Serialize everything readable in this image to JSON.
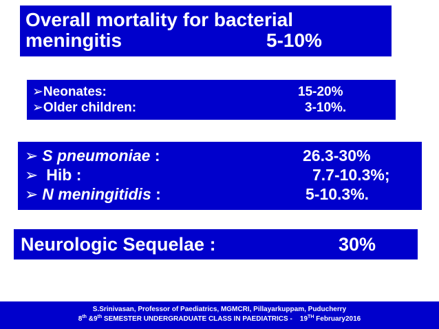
{
  "overall": {
    "line1": "Overall mortality for bacterial",
    "line2_label": "meningitis",
    "line2_value": "5-10%"
  },
  "age_groups": [
    {
      "bullet": "➢",
      "label": "Neonates:",
      "value": "15-20%"
    },
    {
      "bullet": "➢",
      "label": "Older children:",
      "value": "3-10%."
    }
  ],
  "organisms": [
    {
      "bullet": "➢",
      "name": "S pneumoniae",
      "sep": " :",
      "value": "26.3-30%"
    },
    {
      "bullet": "➢",
      "name": "Hib",
      "sep": " :",
      "value": "7.7-10.3%;"
    },
    {
      "bullet": "➢",
      "name": "N meningitidis",
      "sep": " :",
      "value": "5-10.3%."
    }
  ],
  "sequelae": {
    "label": "Neurologic Sequelae :",
    "value": "30%"
  },
  "footer": {
    "line1": "S.Srinivasan, Professor of Paediatrics, MGMCRI, Pillayarkuppam, Puducherry",
    "line2_pre": "8",
    "line2_sup1": "th",
    "line2_mid": " &9",
    "line2_sup2": "th",
    "line2_post": " SEMESTER UNDERGRADUATE CLASS IN PAEDIATRICS -    19",
    "line2_sup3": "TH",
    "line2_end": " February2016"
  },
  "colors": {
    "box_background": "#0000cc",
    "text": "#ffffff"
  }
}
